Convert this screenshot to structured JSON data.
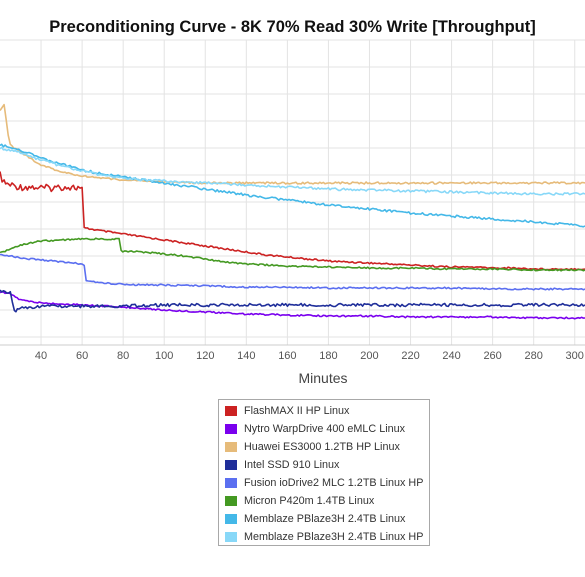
{
  "chart_data": {
    "type": "line",
    "title": "Preconditioning Curve - 8K 70% Read 30% Write [Throughput]",
    "xlabel": "Minutes",
    "ylabel": "",
    "xlim": [
      20,
      305
    ],
    "x_ticks": [
      40,
      60,
      80,
      100,
      120,
      140,
      160,
      180,
      200,
      220,
      240,
      260,
      280,
      300
    ],
    "grid": true,
    "legend_position": "bottom-center",
    "series": [
      {
        "name": "FlashMAX II HP Linux",
        "color": "#cc2222",
        "points": [
          [
            20,
            175
          ],
          [
            22,
            183
          ],
          [
            25,
            185
          ],
          [
            30,
            187
          ],
          [
            35,
            187
          ],
          [
            40,
            188
          ],
          [
            45,
            188
          ],
          [
            50,
            187
          ],
          [
            55,
            187
          ],
          [
            58,
            188
          ],
          [
            60,
            188
          ],
          [
            61,
            228
          ],
          [
            70,
            231
          ],
          [
            80,
            234
          ],
          [
            90,
            237
          ],
          [
            100,
            240
          ],
          [
            110,
            243
          ],
          [
            120,
            246
          ],
          [
            130,
            249
          ],
          [
            140,
            252
          ],
          [
            150,
            255
          ],
          [
            160,
            257
          ],
          [
            170,
            259
          ],
          [
            180,
            261
          ],
          [
            190,
            262
          ],
          [
            200,
            263
          ],
          [
            210,
            264
          ],
          [
            220,
            265
          ],
          [
            230,
            266
          ],
          [
            240,
            267
          ],
          [
            250,
            267
          ],
          [
            260,
            268
          ],
          [
            270,
            268
          ],
          [
            280,
            269
          ],
          [
            290,
            269
          ],
          [
            300,
            269
          ],
          [
            305,
            269
          ]
        ]
      },
      {
        "name": "Nytro WarpDrive 400 eMLC Linux",
        "color": "#7a00ee",
        "points": [
          [
            20,
            292
          ],
          [
            25,
            294
          ],
          [
            30,
            300
          ],
          [
            40,
            303
          ],
          [
            60,
            305
          ],
          [
            80,
            307
          ],
          [
            100,
            310
          ],
          [
            120,
            312
          ],
          [
            140,
            314
          ],
          [
            160,
            315
          ],
          [
            180,
            316
          ],
          [
            200,
            316
          ],
          [
            220,
            317
          ],
          [
            240,
            317
          ],
          [
            260,
            317
          ],
          [
            280,
            318
          ],
          [
            300,
            318
          ],
          [
            305,
            318
          ]
        ]
      },
      {
        "name": "Huawei ES3000 1.2TB HP Linux",
        "color": "#e6bb7a",
        "points": [
          [
            20,
            110
          ],
          [
            22,
            104
          ],
          [
            24,
            135
          ],
          [
            25,
            145
          ],
          [
            30,
            152
          ],
          [
            40,
            165
          ],
          [
            50,
            172
          ],
          [
            60,
            176
          ],
          [
            70,
            178
          ],
          [
            80,
            180
          ],
          [
            90,
            181
          ],
          [
            100,
            182
          ],
          [
            120,
            183
          ],
          [
            140,
            183
          ],
          [
            160,
            183
          ],
          [
            180,
            183
          ],
          [
            200,
            183
          ],
          [
            220,
            183
          ],
          [
            240,
            183
          ],
          [
            260,
            183
          ],
          [
            280,
            183
          ],
          [
            300,
            183
          ],
          [
            305,
            183
          ]
        ]
      },
      {
        "name": "Intel SSD 910 Linux",
        "color": "#1f2e9a",
        "points": [
          [
            20,
            291
          ],
          [
            25,
            292
          ],
          [
            27,
            312
          ],
          [
            30,
            308
          ],
          [
            40,
            306
          ],
          [
            50,
            306
          ],
          [
            60,
            306
          ],
          [
            70,
            306
          ],
          [
            80,
            306
          ],
          [
            100,
            305
          ],
          [
            120,
            305
          ],
          [
            140,
            305
          ],
          [
            160,
            305
          ],
          [
            180,
            305
          ],
          [
            200,
            305
          ],
          [
            220,
            305
          ],
          [
            240,
            305
          ],
          [
            260,
            305
          ],
          [
            280,
            305
          ],
          [
            300,
            305
          ],
          [
            305,
            305
          ]
        ]
      },
      {
        "name": "Fusion ioDrive2 MLC 1.2TB Linux HP",
        "color": "#5b6ff0",
        "points": [
          [
            20,
            254
          ],
          [
            30,
            258
          ],
          [
            40,
            260
          ],
          [
            50,
            262
          ],
          [
            60,
            264
          ],
          [
            61,
            265
          ],
          [
            62,
            280
          ],
          [
            64,
            281
          ],
          [
            70,
            283
          ],
          [
            80,
            284
          ],
          [
            90,
            285
          ],
          [
            100,
            285
          ],
          [
            120,
            286
          ],
          [
            140,
            287
          ],
          [
            160,
            287
          ],
          [
            180,
            288
          ],
          [
            200,
            288
          ],
          [
            220,
            288
          ],
          [
            240,
            288
          ],
          [
            260,
            289
          ],
          [
            280,
            289
          ],
          [
            300,
            289
          ],
          [
            305,
            289
          ]
        ]
      },
      {
        "name": "Micron P420m 1.4TB Linux",
        "color": "#449922",
        "points": [
          [
            20,
            253
          ],
          [
            30,
            245
          ],
          [
            40,
            241
          ],
          [
            50,
            240
          ],
          [
            60,
            239
          ],
          [
            70,
            239
          ],
          [
            78,
            239
          ],
          [
            79,
            251
          ],
          [
            90,
            252
          ],
          [
            100,
            254
          ],
          [
            110,
            256
          ],
          [
            120,
            259
          ],
          [
            130,
            262
          ],
          [
            140,
            264
          ],
          [
            160,
            266
          ],
          [
            180,
            267
          ],
          [
            200,
            268
          ],
          [
            220,
            268
          ],
          [
            240,
            269
          ],
          [
            260,
            269
          ],
          [
            280,
            270
          ],
          [
            300,
            270
          ],
          [
            305,
            270
          ]
        ]
      },
      {
        "name": "Memblaze PBlaze3H 2.4TB Linux",
        "color": "#44b8e8",
        "points": [
          [
            20,
            145
          ],
          [
            30,
            150
          ],
          [
            40,
            158
          ],
          [
            50,
            164
          ],
          [
            60,
            170
          ],
          [
            70,
            174
          ],
          [
            80,
            177
          ],
          [
            90,
            180
          ],
          [
            100,
            183
          ],
          [
            110,
            186
          ],
          [
            120,
            189
          ],
          [
            130,
            192
          ],
          [
            140,
            195
          ],
          [
            160,
            200
          ],
          [
            180,
            205
          ],
          [
            200,
            209
          ],
          [
            220,
            213
          ],
          [
            240,
            216
          ],
          [
            260,
            219
          ],
          [
            280,
            222
          ],
          [
            300,
            225
          ],
          [
            305,
            226
          ]
        ]
      },
      {
        "name": "Memblaze PBlaze3H 2.4TB Linux HP",
        "color": "#88d8f8",
        "points": [
          [
            20,
            148
          ],
          [
            30,
            153
          ],
          [
            40,
            160
          ],
          [
            50,
            166
          ],
          [
            60,
            171
          ],
          [
            70,
            175
          ],
          [
            80,
            178
          ],
          [
            90,
            180
          ],
          [
            100,
            181
          ],
          [
            110,
            182
          ],
          [
            120,
            183
          ],
          [
            140,
            185
          ],
          [
            160,
            187
          ],
          [
            180,
            189
          ],
          [
            200,
            190
          ],
          [
            220,
            191
          ],
          [
            240,
            192
          ],
          [
            260,
            193
          ],
          [
            280,
            194
          ],
          [
            300,
            194
          ],
          [
            305,
            194
          ]
        ]
      }
    ]
  }
}
